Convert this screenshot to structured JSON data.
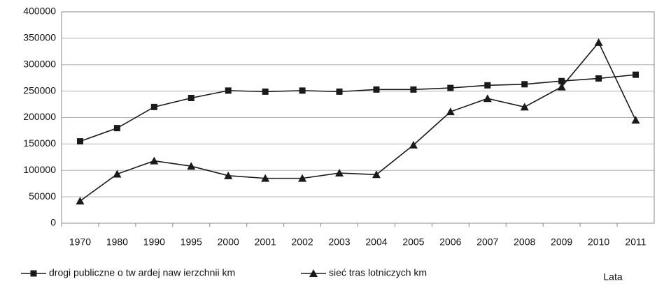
{
  "chart_data": {
    "type": "line",
    "categories": [
      "1970",
      "1980",
      "1990",
      "1995",
      "2000",
      "2001",
      "2002",
      "2003",
      "2004",
      "2005",
      "2006",
      "2007",
      "2008",
      "2009",
      "2010",
      "2011"
    ],
    "series": [
      {
        "name": "drogi publiczne o tw ardej naw ierzchnii km",
        "color": "#1a1a1a",
        "marker": "square",
        "values": [
          155000,
          180000,
          220000,
          237000,
          251000,
          249000,
          251000,
          249000,
          253000,
          253000,
          256000,
          261000,
          263000,
          269000,
          274000,
          281000
        ]
      },
      {
        "name": "sieć tras lotniczych km",
        "color": "#1a1a1a",
        "marker": "triangle",
        "values": [
          42000,
          93000,
          118000,
          108000,
          90000,
          85000,
          85000,
          95000,
          92000,
          148000,
          211000,
          236000,
          220000,
          258000,
          342000,
          195000
        ]
      }
    ],
    "xlabel": "Lata",
    "ylim": [
      0,
      400000
    ],
    "yticks": [
      0,
      50000,
      100000,
      150000,
      200000,
      250000,
      300000,
      350000,
      400000
    ],
    "grid": true
  }
}
